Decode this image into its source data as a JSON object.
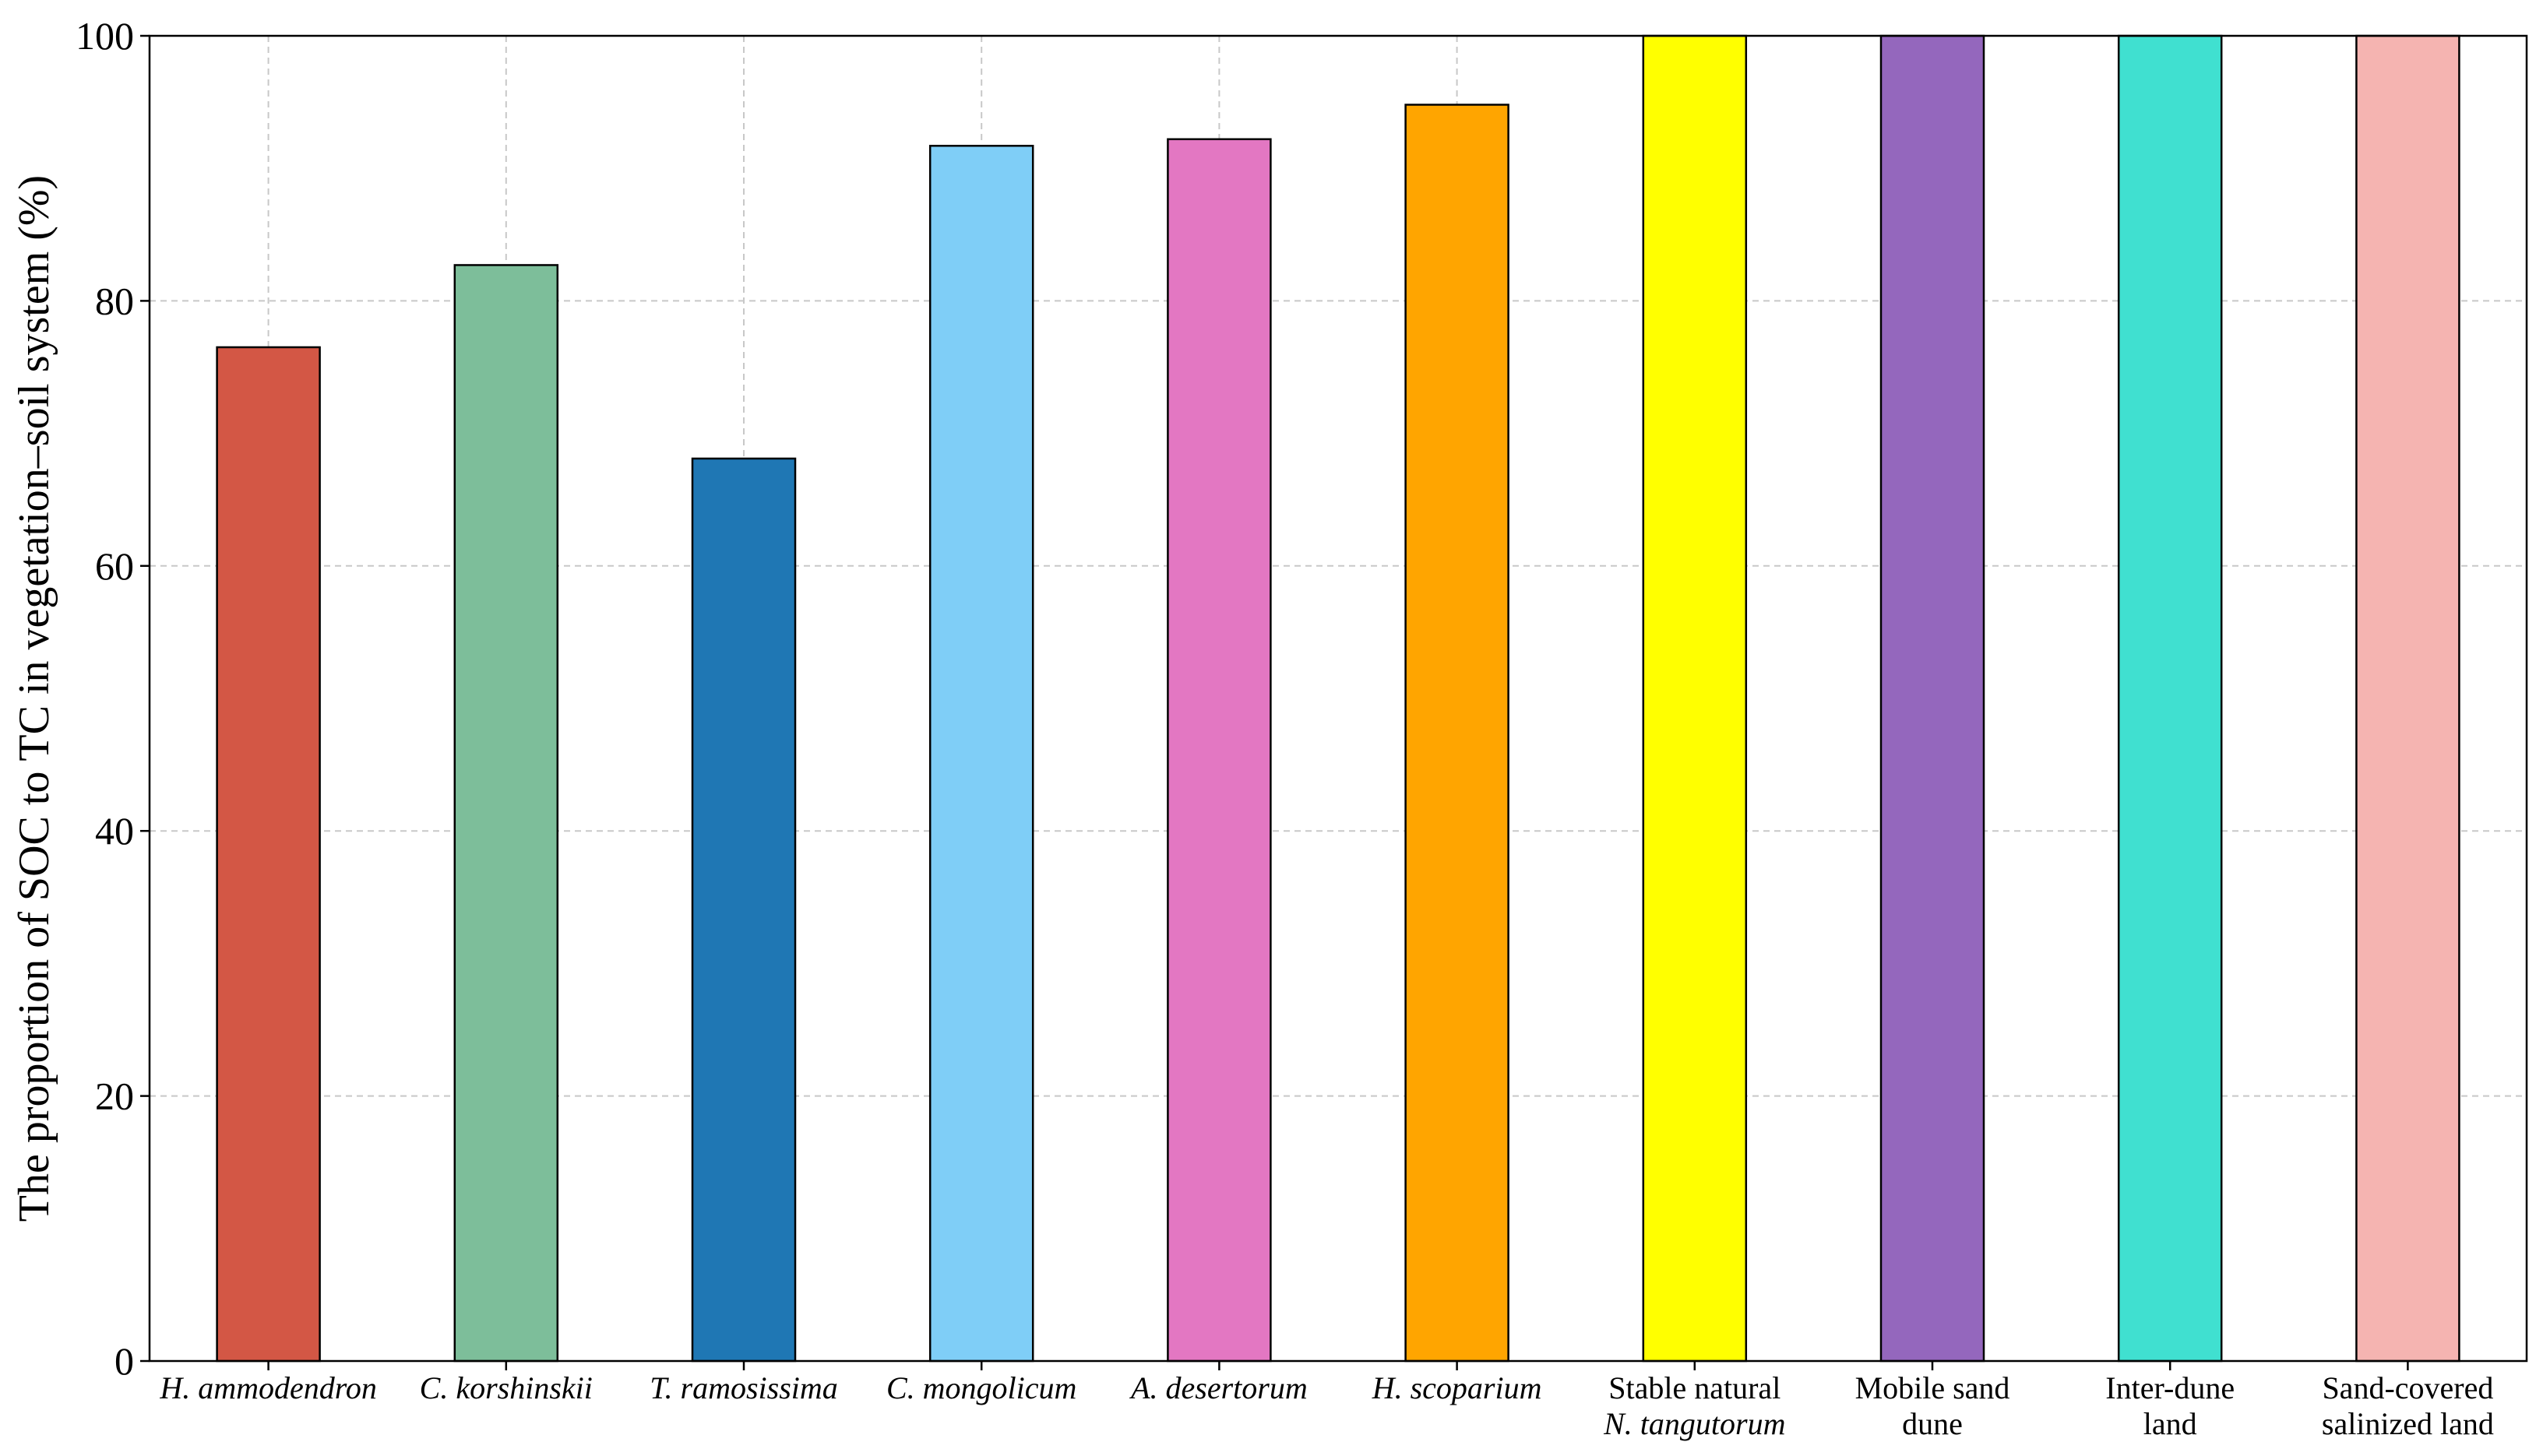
{
  "chart_data": {
    "type": "bar",
    "title": "",
    "xlabel": "",
    "ylabel": "The proportion of SOC to TC in vegetation–soil system (%)",
    "ylim": [
      0,
      100
    ],
    "yticks": [
      0,
      20,
      40,
      60,
      80,
      100
    ],
    "grid": true,
    "categories": [
      {
        "lines": [
          "H. ammodendron"
        ],
        "italic": [
          true
        ]
      },
      {
        "lines": [
          "C. korshinskii"
        ],
        "italic": [
          true
        ]
      },
      {
        "lines": [
          "T. ramosissima"
        ],
        "italic": [
          true
        ]
      },
      {
        "lines": [
          "C. mongolicum"
        ],
        "italic": [
          true
        ]
      },
      {
        "lines": [
          "A. desertorum"
        ],
        "italic": [
          true
        ]
      },
      {
        "lines": [
          "H. scoparium"
        ],
        "italic": [
          true
        ]
      },
      {
        "lines": [
          "Stable natural",
          "N. tangutorum"
        ],
        "italic": [
          false,
          true
        ]
      },
      {
        "lines": [
          "Mobile sand",
          "dune"
        ],
        "italic": [
          false,
          false
        ]
      },
      {
        "lines": [
          "Inter-dune",
          "land"
        ],
        "italic": [
          false,
          false
        ]
      },
      {
        "lines": [
          "Sand-covered",
          "salinized land"
        ],
        "italic": [
          false,
          false
        ]
      }
    ],
    "values": [
      76.5,
      82.7,
      68.1,
      91.7,
      92.2,
      94.8,
      100,
      100,
      100,
      100
    ],
    "colors": [
      "#d35745",
      "#7dbe9a",
      "#1f77b4",
      "#7fcef7",
      "#e377c2",
      "#ffa500",
      "#ffff00",
      "#9467bd",
      "#40e0d0",
      "#f5b4b1"
    ]
  }
}
